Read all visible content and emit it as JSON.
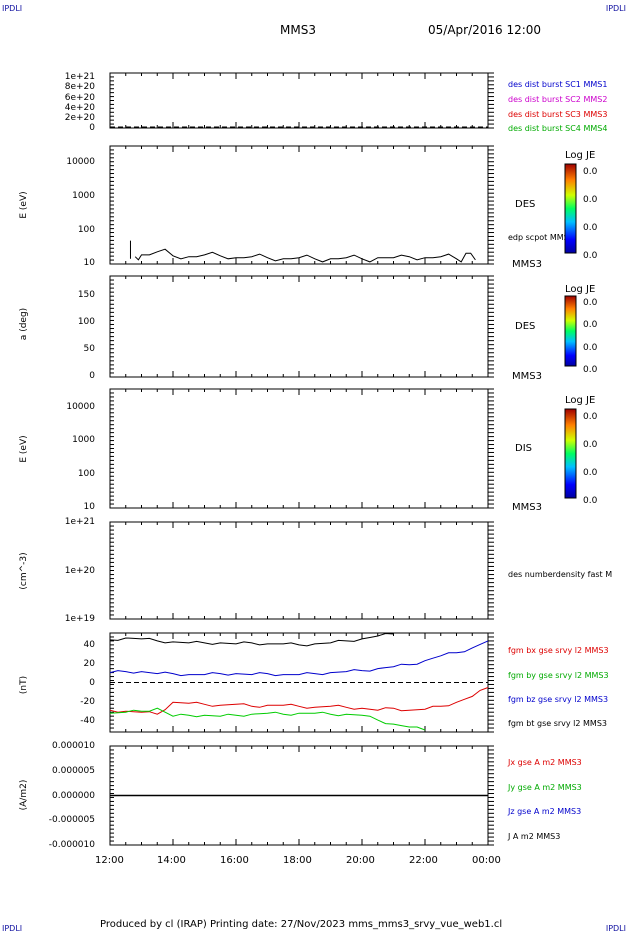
{
  "corner": {
    "tl": "IPDLI",
    "tr": "IPDLI",
    "bl": "IPDLI",
    "br": "IPDLI"
  },
  "header": {
    "spacecraft": "MMS3",
    "date": "05/Apr/2016 12:00"
  },
  "footer": "Produced by cl (IRAP)   Printing date: 27/Nov/2023   mms_mms3_srvy_vue_web1.cl",
  "colors": {
    "black": "#000000",
    "blue": "#0000cc",
    "magenta": "#cc00cc",
    "red": "#dd0000",
    "green": "#00cc00"
  },
  "panels": {
    "p1": {
      "ticks": [
        "1e+21",
        "8e+20",
        "6e+20",
        "4e+20",
        "2e+20",
        "0"
      ],
      "legend": [
        "des dist burst SC1 MMS1",
        "des dist burst SC2 MMS2",
        "des dist burst SC3 MMS3",
        "des dist burst SC4 MMS4"
      ]
    },
    "p2": {
      "ylabel": "E (eV)",
      "ticks": [
        "10000",
        "1000",
        "100",
        "10"
      ],
      "side": "DES",
      "sc": "MMS3",
      "note": "edp scpot MMS3",
      "cb_title": "Log JE",
      "cb_vals": [
        "0.0",
        "0.0",
        "0.0",
        "0.0"
      ]
    },
    "p3": {
      "ylabel": "a (deg)",
      "ticks": [
        "150",
        "100",
        "50",
        "0"
      ],
      "side": "DES",
      "sc": "MMS3",
      "cb_title": "Log JE",
      "cb_vals": [
        "0.0",
        "0.0",
        "0.0",
        "0.0"
      ]
    },
    "p4": {
      "ylabel": "E (eV)",
      "ticks": [
        "10000",
        "1000",
        "100",
        "10"
      ],
      "side": "DIS",
      "sc": "MMS3",
      "cb_title": "Log JE",
      "cb_vals": [
        "0.0",
        "0.0",
        "0.0",
        "0.0"
      ]
    },
    "p5": {
      "ylabel": "(cm^-3)",
      "ticks": [
        "1e+21",
        "1e+20",
        "1e+19"
      ],
      "legend": "des numberdensity fast M"
    },
    "p6": {
      "ylabel": "(nT)",
      "ticks": [
        "40",
        "20",
        "0",
        "-20",
        "-40"
      ],
      "legend": [
        "fgm bx gse srvy l2 MMS3",
        "fgm by gse srvy l2 MMS3",
        "fgm bz gse srvy l2 MMS3",
        "fgm bt gse srvy l2 MMS3"
      ]
    },
    "p7": {
      "ylabel": "(A/m2)",
      "ticks": [
        "0.000010",
        "0.000005",
        "0.000000",
        "-0.000005",
        "-0.000010"
      ],
      "legend": [
        "Jx gse A m2 MMS3",
        "Jy gse A m2 MMS3",
        "Jz gse A m2 MMS3",
        "J A m2 MMS3"
      ]
    }
  },
  "xticks": [
    "12:00",
    "14:00",
    "16:00",
    "18:00",
    "20:00",
    "22:00",
    "00:00"
  ],
  "chart_data": [
    {
      "type": "line",
      "title": "",
      "ylabel": "",
      "ylim": [
        0,
        1e+21
      ],
      "series": []
    },
    {
      "type": "line",
      "ylabel": "E (eV)",
      "yscale": "log",
      "ylim": [
        10,
        20000
      ],
      "x": [
        12.8,
        13.0,
        13.5,
        14.0,
        14.5,
        15.0,
        15.5,
        16.0,
        16.5,
        17.0,
        17.5,
        18.0,
        18.5,
        19.0,
        19.5,
        20.0,
        20.5,
        21.0,
        21.5,
        22.0,
        22.5,
        23.0,
        23.3,
        23.6
      ],
      "series": [
        {
          "name": "edp scpot MMS3",
          "values": [
            16,
            18,
            22,
            17,
            16,
            18,
            17,
            15,
            16,
            15,
            14,
            15,
            14,
            14,
            15,
            14,
            15,
            15,
            16,
            15,
            16,
            14,
            20,
            13
          ]
        }
      ]
    },
    {
      "type": "heatmap",
      "ylabel": "a (deg)",
      "ylim": [
        0,
        180
      ],
      "series": []
    },
    {
      "type": "heatmap",
      "ylabel": "E (eV)",
      "yscale": "log",
      "ylim": [
        10,
        20000
      ],
      "series": []
    },
    {
      "type": "line",
      "ylabel": "(cm^-3)",
      "yscale": "log",
      "ylim": [
        1e+19,
        1e+21
      ],
      "series": []
    },
    {
      "type": "line",
      "ylabel": "(nT)",
      "ylim": [
        -50,
        50
      ],
      "x": [
        12.0,
        12.5,
        13.0,
        13.5,
        14.0,
        14.5,
        15.0,
        15.5,
        16.0,
        16.5,
        17.0,
        17.5,
        18.0,
        18.5,
        19.0,
        19.5,
        20.0,
        20.5,
        21.0,
        21.5,
        22.0,
        22.5,
        23.0,
        23.5,
        24.0
      ],
      "series": [
        {
          "name": "fgm bx gse srvy l2 MMS3",
          "values": [
            -28,
            -29,
            -30,
            -32,
            -20,
            -21,
            -22,
            -23,
            -22,
            -24,
            -23,
            -23,
            -24,
            -25,
            -24,
            -25,
            -26,
            -28,
            -26,
            -28,
            -27,
            -24,
            -20,
            -14,
            -5
          ]
        },
        {
          "name": "fgm by gse srvy l2 MMS3",
          "values": [
            -31,
            -30,
            -29,
            -26,
            -34,
            -33,
            -33,
            -34,
            -33,
            -32,
            -31,
            -32,
            -31,
            -31,
            -32,
            -32,
            -33,
            -38,
            -42,
            -45,
            -48,
            null,
            null,
            null,
            null
          ]
        },
        {
          "name": "fgm bz gse srvy l2 MMS3",
          "values": [
            10,
            11,
            11,
            9,
            9,
            8,
            8,
            9,
            9,
            8,
            9,
            8,
            8,
            9,
            10,
            11,
            12,
            14,
            16,
            18,
            22,
            27,
            30,
            35,
            42
          ]
        },
        {
          "name": "fgm bt gse srvy l2 MMS3",
          "values": [
            43,
            45,
            44,
            42,
            41,
            40,
            40,
            40,
            39,
            40,
            39,
            39,
            38,
            39,
            40,
            42,
            44,
            47,
            49,
            null,
            null,
            null,
            null,
            null,
            null
          ]
        }
      ]
    },
    {
      "type": "line",
      "ylabel": "(A/m2)",
      "ylim": [
        -1e-05,
        1e-05
      ],
      "x": [
        12,
        24
      ],
      "series": [
        {
          "name": "J A m2 MMS3",
          "values": [
            0,
            0
          ]
        }
      ]
    }
  ]
}
